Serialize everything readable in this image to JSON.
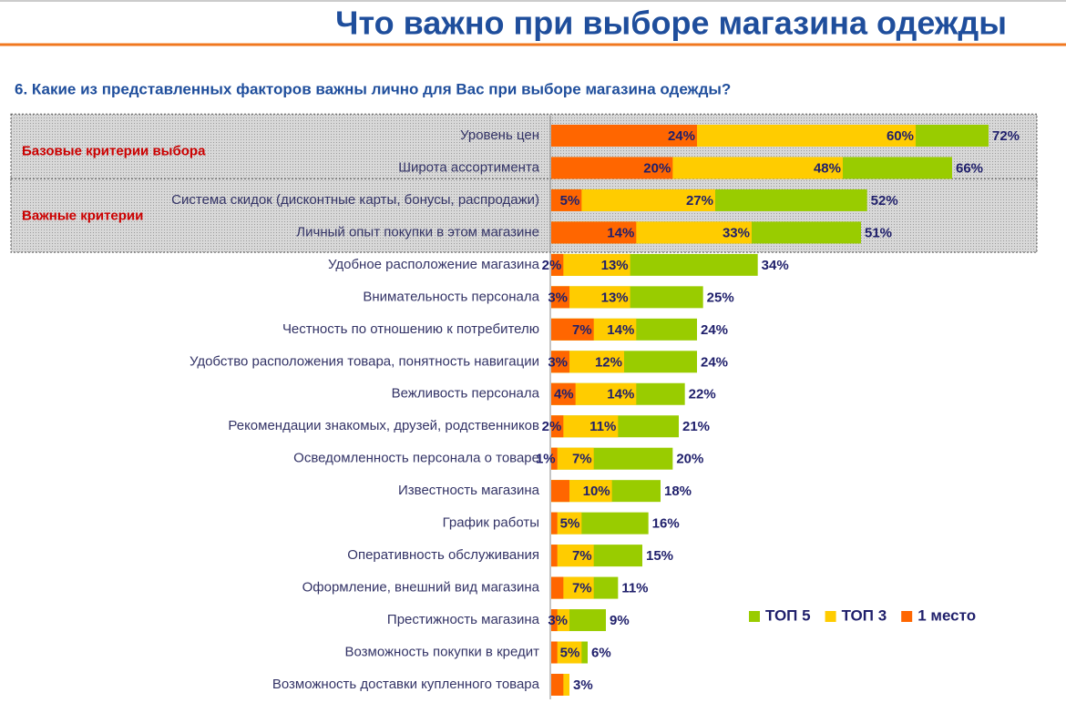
{
  "chart_data": {
    "type": "bar",
    "orientation": "horizontal",
    "title": "Что важно при выборе магазина одежды",
    "subtitle": "6. Какие из представленных факторов важны лично для Вас при выборе магазина одежды?",
    "groups": [
      {
        "label": "Базовые критерии выбора"
      },
      {
        "label": "Важные критерии"
      }
    ],
    "categories": [
      "Уровень цен",
      "Широта ассортимента",
      "Система скидок (дисконтные карты, бонусы, распродажи)",
      "Личный опыт покупки в этом магазине",
      "Удобное расположение магазина",
      "Внимательность персонала",
      "Честность по отношению к потребителю",
      "Удобство расположения товара, понятность навигации",
      "Вежливость персонала",
      "Рекомендации знакомых, друзей, родственников",
      "Осведомленность персонала о товаре",
      "Известность магазина",
      "График работы",
      "Оперативность обслуживания",
      "Оформление, внешний вид магазина",
      "Престижность магазина",
      "Возможность покупки в кредит",
      "Возможность доставки купленного товара"
    ],
    "series": [
      {
        "name": "ТОП 5",
        "color": "#99cc00",
        "values": [
          72,
          66,
          52,
          51,
          34,
          25,
          24,
          24,
          22,
          21,
          20,
          18,
          16,
          15,
          11,
          9,
          6,
          3
        ],
        "value_labels": [
          "72%",
          "66%",
          "52%",
          "51%",
          "34%",
          "25%",
          "24%",
          "24%",
          "22%",
          "21%",
          "20%",
          "18%",
          "16%",
          "15%",
          "11%",
          "9%",
          "6%",
          "3%"
        ]
      },
      {
        "name": "ТОП 3",
        "color": "#ffcc00",
        "values": [
          60,
          48,
          27,
          33,
          13,
          13,
          14,
          12,
          14,
          11,
          7,
          10,
          5,
          7,
          7,
          3,
          5,
          3
        ],
        "value_labels": [
          "60%",
          "48%",
          "27%",
          "33%",
          "13%",
          "13%",
          "14%",
          "12%",
          "14%",
          "11%",
          "7%",
          "10%",
          "5%",
          "7%",
          "7%",
          "3%",
          "5%",
          null
        ]
      },
      {
        "name": "1 место",
        "color": "#ff6600",
        "values": [
          24,
          20,
          5,
          14,
          2,
          3,
          7,
          3,
          4,
          2,
          1,
          3,
          1,
          1,
          2,
          1,
          1,
          2
        ],
        "value_labels": [
          "24%",
          "20%",
          "5%",
          "14%",
          "2%",
          "3%",
          "7%",
          "3%",
          "4%",
          "2%",
          "1%",
          null,
          null,
          null,
          null,
          null,
          null,
          null
        ]
      }
    ]
  }
}
